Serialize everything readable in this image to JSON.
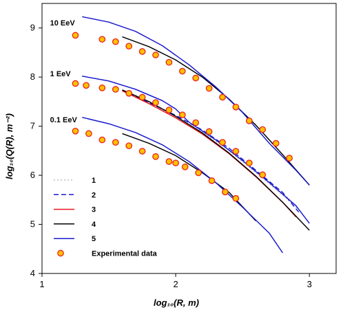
{
  "chart_data": {
    "type": "line",
    "xlabel": "log₁₀(R, m)",
    "ylabel": "log₁₀(Q(R), m⁻²)",
    "xlim": [
      1,
      3.2
    ],
    "ylim": [
      4,
      9.5
    ],
    "xticks": [
      1,
      2,
      3
    ],
    "yticks": [
      4,
      5,
      6,
      7,
      8,
      9
    ],
    "grid": false,
    "legend_position": "bottom-left",
    "annotations": [
      {
        "text": "10 EeV",
        "x": 1.06,
        "y": 9.05
      },
      {
        "text": "1 EeV",
        "x": 1.06,
        "y": 8.02
      },
      {
        "text": "0.1 EeV",
        "x": 1.06,
        "y": 7.08
      }
    ],
    "colors": {
      "1": "#b0b0b0",
      "2": "#1a1acc",
      "3": "#e8141e",
      "4": "#000000",
      "5": "#1a1acc",
      "marker_fill": "#ffc000",
      "marker_edge": "#e82020"
    },
    "series": [
      {
        "name": "1",
        "style": "dotted",
        "color": "#b0b0b0",
        "values": [
          [
            1.6,
            7.72
          ],
          [
            1.8,
            7.48
          ],
          [
            2.0,
            7.2
          ],
          [
            2.2,
            6.88
          ],
          [
            2.4,
            6.5
          ],
          [
            2.6,
            6.05
          ],
          [
            2.8,
            5.6
          ],
          [
            2.92,
            5.3
          ]
        ]
      },
      {
        "name": "2",
        "style": "dashed",
        "color": "#1a1acc",
        "values": [
          [
            1.6,
            7.72
          ],
          [
            1.8,
            7.48
          ],
          [
            2.0,
            7.22
          ],
          [
            2.2,
            6.92
          ],
          [
            2.4,
            6.55
          ],
          [
            2.6,
            6.1
          ],
          [
            2.8,
            5.65
          ],
          [
            2.92,
            5.25
          ]
        ]
      },
      {
        "name": "3",
        "style": "solid",
        "color": "#e8141e",
        "values": [
          [
            1.6,
            7.72
          ],
          [
            1.8,
            7.46
          ],
          [
            2.0,
            7.17
          ],
          [
            2.2,
            6.84
          ],
          [
            2.4,
            6.44
          ],
          [
            2.6,
            5.97
          ],
          [
            2.8,
            5.45
          ],
          [
            2.9,
            5.15
          ]
        ]
      },
      {
        "name": "4",
        "style": "solid",
        "color": "#000000",
        "segments": [
          [
            [
              1.6,
              8.82
            ],
            [
              1.8,
              8.62
            ],
            [
              2.0,
              8.35
            ],
            [
              2.2,
              8.0
            ],
            [
              2.4,
              7.55
            ],
            [
              2.6,
              7.02
            ],
            [
              2.8,
              6.42
            ],
            [
              3.0,
              5.8
            ]
          ],
          [
            [
              1.6,
              7.74
            ],
            [
              1.8,
              7.5
            ],
            [
              2.0,
              7.2
            ],
            [
              2.2,
              6.86
            ],
            [
              2.4,
              6.45
            ],
            [
              2.6,
              5.98
            ],
            [
              2.8,
              5.45
            ],
            [
              3.0,
              4.88
            ]
          ],
          [
            [
              1.6,
              6.85
            ],
            [
              1.8,
              6.65
            ],
            [
              2.0,
              6.4
            ],
            [
              2.2,
              6.05
            ],
            [
              2.4,
              5.65
            ],
            [
              2.6,
              5.07
            ]
          ]
        ]
      },
      {
        "name": "5",
        "style": "solid",
        "color": "#1a1acc",
        "segments": [
          [
            [
              1.3,
              9.23
            ],
            [
              1.5,
              9.12
            ],
            [
              1.7,
              8.93
            ],
            [
              1.9,
              8.64
            ],
            [
              2.1,
              8.25
            ],
            [
              2.3,
              7.8
            ],
            [
              2.5,
              7.28
            ],
            [
              2.7,
              6.65
            ],
            [
              2.9,
              6.1
            ],
            [
              3.0,
              5.8
            ]
          ],
          [
            [
              1.3,
              8.02
            ],
            [
              1.5,
              7.92
            ],
            [
              1.7,
              7.75
            ],
            [
              1.9,
              7.52
            ],
            [
              2.0,
              7.35
            ],
            [
              2.1,
              7.08
            ],
            [
              2.3,
              6.72
            ],
            [
              2.5,
              6.3
            ],
            [
              2.7,
              5.85
            ],
            [
              2.9,
              5.38
            ],
            [
              3.0,
              5.02
            ]
          ],
          [
            [
              1.3,
              7.18
            ],
            [
              1.5,
              7.05
            ],
            [
              1.7,
              6.87
            ],
            [
              1.9,
              6.62
            ],
            [
              2.1,
              6.28
            ],
            [
              2.3,
              5.85
            ],
            [
              2.5,
              5.35
            ],
            [
              2.7,
              4.82
            ],
            [
              2.8,
              4.42
            ]
          ]
        ]
      },
      {
        "name": "Experimental data",
        "style": "markers",
        "marker": "circle",
        "values": [
          [
            1.25,
            8.85
          ],
          [
            1.45,
            8.77
          ],
          [
            1.55,
            8.72
          ],
          [
            1.65,
            8.63
          ],
          [
            1.75,
            8.52
          ],
          [
            1.85,
            8.45
          ],
          [
            1.95,
            8.3
          ],
          [
            2.05,
            8.12
          ],
          [
            2.15,
            7.98
          ],
          [
            2.25,
            7.77
          ],
          [
            2.35,
            7.59
          ],
          [
            2.45,
            7.39
          ],
          [
            2.55,
            7.11
          ],
          [
            2.65,
            6.93
          ],
          [
            2.75,
            6.65
          ],
          [
            2.85,
            6.35
          ],
          [
            1.25,
            7.87
          ],
          [
            1.33,
            7.83
          ],
          [
            1.45,
            7.78
          ],
          [
            1.55,
            7.75
          ],
          [
            1.65,
            7.67
          ],
          [
            1.75,
            7.59
          ],
          [
            1.85,
            7.48
          ],
          [
            1.95,
            7.33
          ],
          [
            2.05,
            7.23
          ],
          [
            2.15,
            7.07
          ],
          [
            2.25,
            6.89
          ],
          [
            2.35,
            6.67
          ],
          [
            2.45,
            6.49
          ],
          [
            2.55,
            6.25
          ],
          [
            2.65,
            6.01
          ],
          [
            1.25,
            6.9
          ],
          [
            1.35,
            6.85
          ],
          [
            1.45,
            6.72
          ],
          [
            1.55,
            6.67
          ],
          [
            1.65,
            6.6
          ],
          [
            1.75,
            6.49
          ],
          [
            1.85,
            6.38
          ],
          [
            1.95,
            6.28
          ],
          [
            2.0,
            6.25
          ],
          [
            2.07,
            6.17
          ],
          [
            2.17,
            6.05
          ],
          [
            2.27,
            5.89
          ],
          [
            2.37,
            5.66
          ],
          [
            2.45,
            5.53
          ]
        ]
      }
    ]
  }
}
